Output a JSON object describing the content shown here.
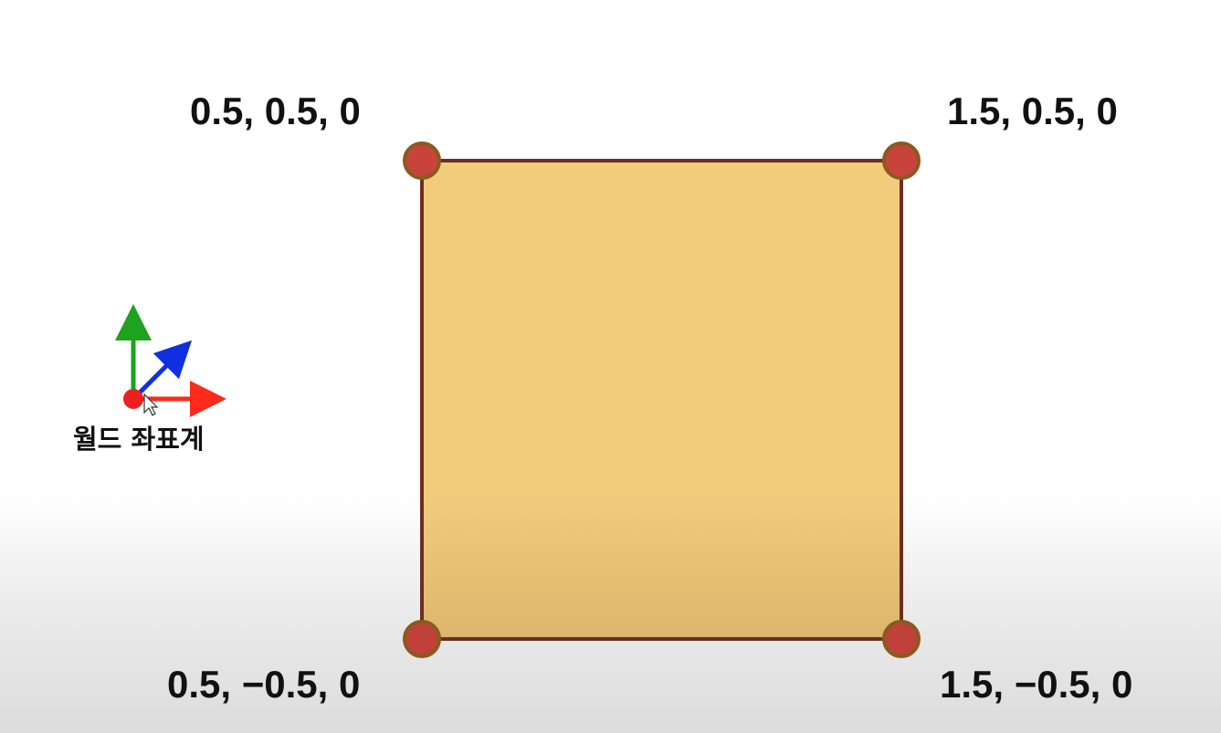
{
  "vertices": [
    {
      "id": "top-left",
      "label": "0.5, 0.5, 0"
    },
    {
      "id": "top-right",
      "label": "1.5, 0.5, 0"
    },
    {
      "id": "bottom-left",
      "label": "0.5, −0.5, 0"
    },
    {
      "id": "bottom-right",
      "label": "1.5, −0.5, 0"
    }
  ],
  "axes": {
    "caption": "월드 좌표계",
    "x_color": "#ff2a1a",
    "y_color": "#1fa31f",
    "z_color": "#1030e0",
    "origin_color": "#f01e1e"
  },
  "quad": {
    "fill_color": "#f2cb7b",
    "border_color": "#6b2e22",
    "vertex_color": "#c8443a",
    "vertex_ring_color": "#8a5a1e"
  }
}
